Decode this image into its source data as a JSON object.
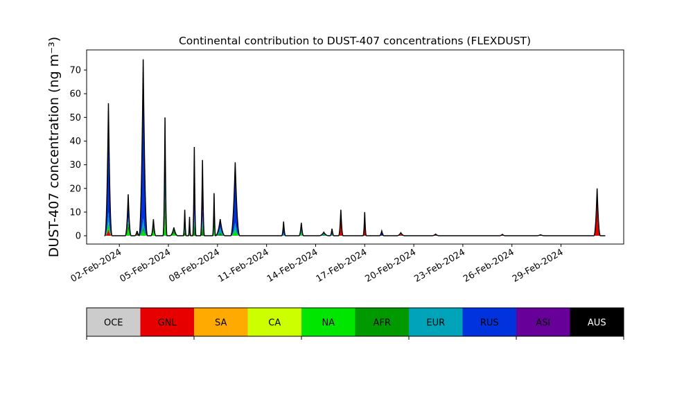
{
  "chart_data": {
    "type": "area",
    "stacked": true,
    "title": "Continental contribution to DUST-407 concentrations (FLEXDUST)",
    "ylabel": "DUST-407 concentration (ng m⁻³)",
    "xlabel": "",
    "ylim": [
      -3.5,
      78.5
    ],
    "yticks": [
      0,
      10,
      20,
      30,
      40,
      50,
      60,
      70
    ],
    "xlim": [
      "2024-01-31T00:00",
      "2024-03-03T20:00"
    ],
    "xticks": [
      "2024-02-02",
      "2024-02-05",
      "2024-02-08",
      "2024-02-11",
      "2024-02-14",
      "2024-02-17",
      "2024-02-20",
      "2024-02-23",
      "2024-02-26",
      "2024-02-29"
    ],
    "xtick_labels": [
      "02-Feb-2024",
      "05-Feb-2024",
      "08-Feb-2024",
      "11-Feb-2024",
      "14-Feb-2024",
      "17-Feb-2024",
      "20-Feb-2024",
      "23-Feb-2024",
      "26-Feb-2024",
      "29-Feb-2024"
    ],
    "legend_placement": "colorbar below plot",
    "series": [
      {
        "name": "OCE",
        "color": "#cccccc"
      },
      {
        "name": "GNL",
        "color": "#e60000"
      },
      {
        "name": "SA",
        "color": "#ffaa00"
      },
      {
        "name": "CA",
        "color": "#ccff00"
      },
      {
        "name": "NA",
        "color": "#00e600"
      },
      {
        "name": "AFR",
        "color": "#009900"
      },
      {
        "name": "EUR",
        "color": "#00a3b8"
      },
      {
        "name": "RUS",
        "color": "#0033dd"
      },
      {
        "name": "ASI",
        "color": "#660099"
      },
      {
        "name": "AUS",
        "color": "#000000"
      }
    ],
    "peaks": [
      {
        "t": "2024-02-01T08:00",
        "total": 56,
        "w": 0.22,
        "mix": {
          "RUS": 0.82,
          "EUR": 0.08,
          "NA": 0.05,
          "GNL": 0.05
        }
      },
      {
        "t": "2024-02-02T13:00",
        "total": 17.5,
        "w": 0.18,
        "mix": {
          "RUS": 0.55,
          "AFR": 0.2,
          "NA": 0.15,
          "EUR": 0.1
        }
      },
      {
        "t": "2024-02-03T02:00",
        "total": 2,
        "w": 0.15,
        "mix": {
          "RUS": 0.5,
          "AFR": 0.3,
          "GNL": 0.2
        }
      },
      {
        "t": "2024-02-03T11:00",
        "total": 74.5,
        "w": 0.26,
        "mix": {
          "RUS": 0.9,
          "EUR": 0.05,
          "NA": 0.03,
          "AFR": 0.02
        }
      },
      {
        "t": "2024-02-04T02:00",
        "total": 7,
        "w": 0.15,
        "mix": {
          "AFR": 0.5,
          "NA": 0.3,
          "EUR": 0.2
        }
      },
      {
        "t": "2024-02-04T19:00",
        "total": 50,
        "w": 0.12,
        "mix": {
          "RUS": 0.3,
          "EUR": 0.35,
          "AFR": 0.2,
          "NA": 0.15
        }
      },
      {
        "t": "2024-02-05T08:00",
        "total": 3.5,
        "w": 0.25,
        "mix": {
          "AFR": 0.4,
          "EUR": 0.3,
          "NA": 0.3
        }
      },
      {
        "t": "2024-02-06T00:00",
        "total": 11,
        "w": 0.09,
        "mix": {
          "ASI": 0.6,
          "AFR": 0.2,
          "EUR": 0.2
        }
      },
      {
        "t": "2024-02-06T07:00",
        "total": 8,
        "w": 0.07,
        "mix": {
          "ASI": 0.5,
          "RUS": 0.3,
          "AFR": 0.2
        }
      },
      {
        "t": "2024-02-06T14:00",
        "total": 37.5,
        "w": 0.1,
        "mix": {
          "ASI": 0.55,
          "RUS": 0.2,
          "AFR": 0.15,
          "EUR": 0.1
        }
      },
      {
        "t": "2024-02-07T02:00",
        "total": 32,
        "w": 0.12,
        "mix": {
          "ASI": 0.65,
          "AFR": 0.15,
          "EUR": 0.1,
          "RUS": 0.1
        }
      },
      {
        "t": "2024-02-07T19:00",
        "total": 18,
        "w": 0.09,
        "mix": {
          "AFR": 0.5,
          "EUR": 0.2,
          "NA": 0.2,
          "ASI": 0.1
        }
      },
      {
        "t": "2024-02-08T04:00",
        "total": 7,
        "w": 0.3,
        "mix": {
          "RUS": 0.5,
          "EUR": 0.3,
          "AFR": 0.2
        }
      },
      {
        "t": "2024-02-09T02:00",
        "total": 31,
        "w": 0.28,
        "mix": {
          "RUS": 0.82,
          "EUR": 0.1,
          "NA": 0.08
        }
      },
      {
        "t": "2024-02-12T01:00",
        "total": 6,
        "w": 0.12,
        "mix": {
          "ASI": 0.5,
          "RUS": 0.3,
          "EUR": 0.2
        }
      },
      {
        "t": "2024-02-13T03:00",
        "total": 5.5,
        "w": 0.14,
        "mix": {
          "EUR": 0.5,
          "RUS": 0.3,
          "NA": 0.2
        }
      },
      {
        "t": "2024-02-14T12:00",
        "total": 1.5,
        "w": 0.3,
        "mix": {
          "EUR": 0.5,
          "AFR": 0.3,
          "ASI": 0.2
        }
      },
      {
        "t": "2024-02-15T00:00",
        "total": 3,
        "w": 0.12,
        "mix": {
          "ASI": 0.6,
          "EUR": 0.4
        }
      },
      {
        "t": "2024-02-15T13:00",
        "total": 11,
        "w": 0.14,
        "mix": {
          "GNL": 0.85,
          "RUS": 0.15
        }
      },
      {
        "t": "2024-02-17T00:00",
        "total": 10,
        "w": 0.1,
        "mix": {
          "GNL": 0.8,
          "RUS": 0.2
        }
      },
      {
        "t": "2024-02-18T01:00",
        "total": 2,
        "w": 0.15,
        "mix": {
          "RUS": 0.5,
          "ASI": 0.5
        }
      },
      {
        "t": "2024-02-19T05:00",
        "total": 1.3,
        "w": 0.25,
        "mix": {
          "EUR": 0.5,
          "GNL": 0.5
        }
      },
      {
        "t": "2024-02-21T08:00",
        "total": 0.7,
        "w": 0.25,
        "mix": {
          "GNL": 0.5,
          "EUR": 0.5
        }
      },
      {
        "t": "2024-02-25T10:00",
        "total": 0.6,
        "w": 0.2,
        "mix": {
          "GNL": 1.0
        }
      },
      {
        "t": "2024-02-27T18:00",
        "total": 0.4,
        "w": 0.3,
        "mix": {
          "EUR": 0.5,
          "GNL": 0.5
        }
      },
      {
        "t": "2024-03-02T05:00",
        "total": 20,
        "w": 0.2,
        "mix": {
          "GNL": 0.85,
          "RUS": 0.1,
          "EUR": 0.05
        }
      }
    ]
  }
}
